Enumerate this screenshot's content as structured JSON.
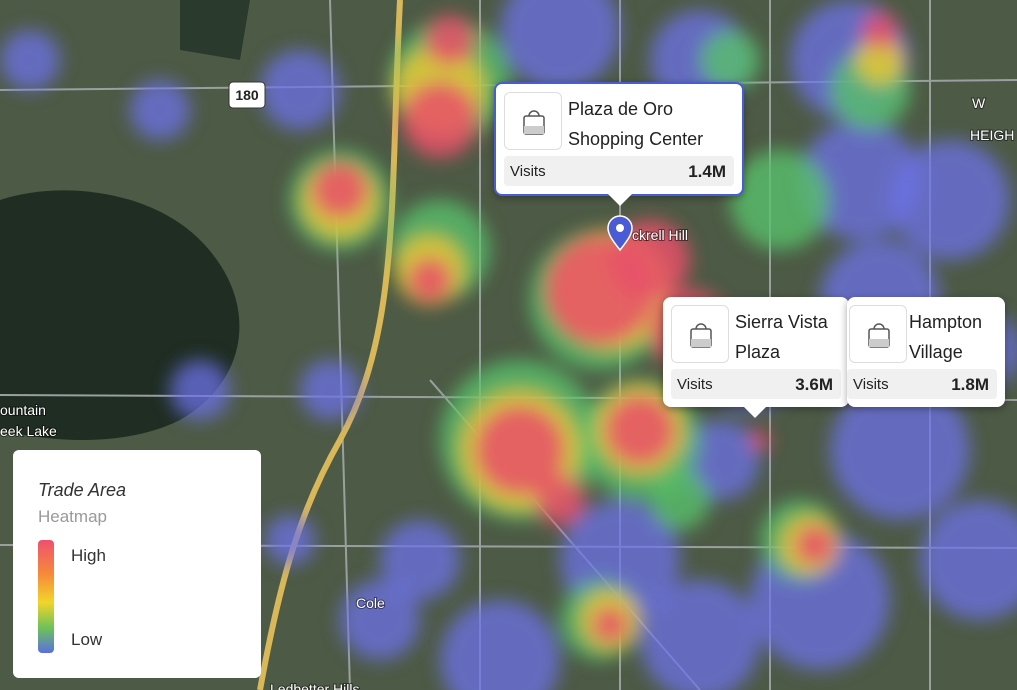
{
  "map": {
    "labels": {
      "highway": "180",
      "town": "ckrell Hill",
      "district_top": "W",
      "district": "HEIGH",
      "lake_1": "ountain",
      "lake_2": "eek Lake",
      "cole": "Cole",
      "ledbetter": "Ledbetter Hills"
    }
  },
  "places": [
    {
      "name": "Plaza de Oro Shopping Center",
      "metric": "Visits",
      "value": "1.4M"
    },
    {
      "name": "Sierra Vista Plaza",
      "metric": "Visits",
      "value": "3.6M"
    },
    {
      "name": "Hampton Village",
      "metric": "Visits",
      "value": "1.8M"
    }
  ],
  "legend": {
    "title": "Trade Area",
    "subtitle": "Heatmap",
    "high": "High",
    "low": "Low"
  }
}
